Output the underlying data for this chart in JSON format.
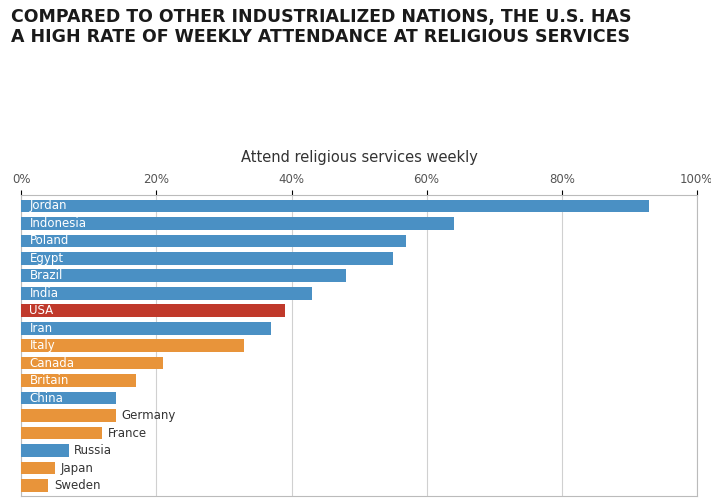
{
  "title_line1": "COMPARED TO OTHER INDUSTRIALIZED NATIONS, THE U.S. HAS",
  "title_line2": "A HIGH RATE OF WEEKLY ATTENDANCE AT RELIGIOUS SERVICES",
  "chart_title": "Attend religious services weekly",
  "countries": [
    "Jordan",
    "Indonesia",
    "Poland",
    "Egypt",
    "Brazil",
    "India",
    "USA",
    "Iran",
    "Italy",
    "Canada",
    "Britain",
    "China",
    "Germany",
    "France",
    "Russia",
    "Japan",
    "Sweden"
  ],
  "values": [
    93,
    64,
    57,
    55,
    48,
    43,
    39,
    37,
    33,
    21,
    17,
    14,
    14,
    12,
    7,
    5,
    4
  ],
  "colors": [
    "#4A90C4",
    "#4A90C4",
    "#4A90C4",
    "#4A90C4",
    "#4A90C4",
    "#4A90C4",
    "#C0392B",
    "#4A90C4",
    "#E8943A",
    "#E8943A",
    "#E8943A",
    "#4A90C4",
    "#E8943A",
    "#E8943A",
    "#4A90C4",
    "#E8943A",
    "#E8943A"
  ],
  "label_inside": [
    true,
    true,
    true,
    true,
    true,
    true,
    true,
    true,
    true,
    true,
    true,
    true,
    false,
    false,
    false,
    false,
    false
  ],
  "xlim": [
    0,
    100
  ],
  "xticks": [
    0,
    20,
    40,
    60,
    80,
    100
  ],
  "xticklabels": [
    "0%",
    "20%",
    "40%",
    "60%",
    "80%",
    "100%"
  ],
  "background_color": "#FFFFFF",
  "grid_color": "#D0D0D0",
  "bar_height": 0.72,
  "title_fontsize": 12.5,
  "chart_title_fontsize": 10.5,
  "label_fontsize": 8.5,
  "tick_fontsize": 8.5
}
